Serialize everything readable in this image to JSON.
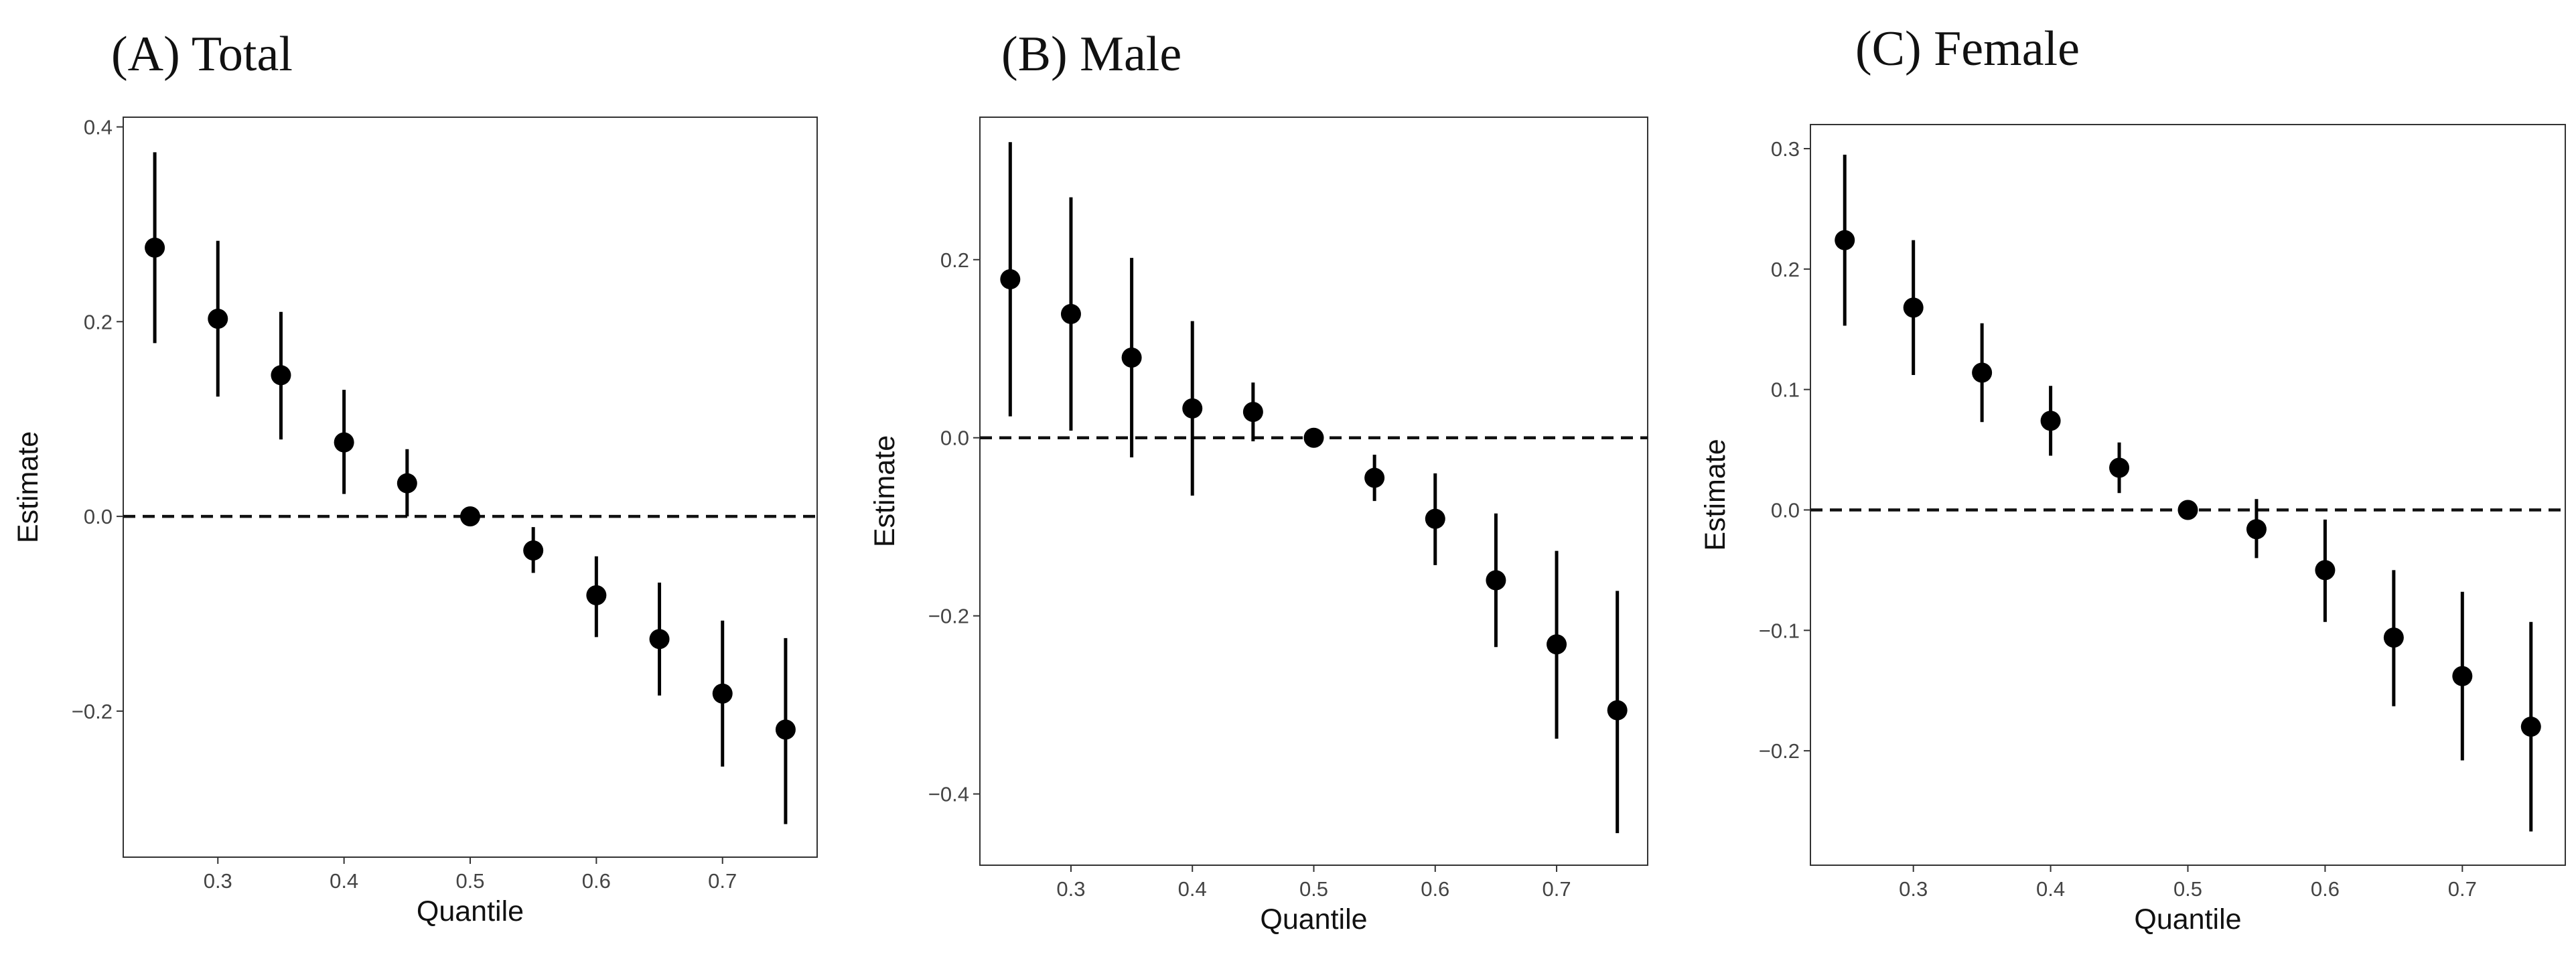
{
  "figure_name": "quantile-regression-estimates",
  "chart_data": [
    {
      "type": "scatter",
      "panel": "A",
      "title": "(A) Total",
      "xlabel": "Quantile",
      "ylabel": "Estimate",
      "xlim": [
        0.225,
        0.775
      ],
      "ylim": [
        -0.35,
        0.41
      ],
      "xticks": [
        0.3,
        0.4,
        0.5,
        0.6,
        0.7
      ],
      "xtick_labels": [
        "0.3",
        "0.4",
        "0.5",
        "0.6",
        "0.7"
      ],
      "yticks": [
        -0.2,
        0.0,
        0.2,
        0.4
      ],
      "ytick_labels": [
        "−0.2",
        "0.0",
        "0.2",
        "0.4"
      ],
      "reference_line": 0,
      "grid": false,
      "series": [
        {
          "name": "Total",
          "x": [
            0.25,
            0.3,
            0.35,
            0.4,
            0.45,
            0.5,
            0.55,
            0.6,
            0.65,
            0.7,
            0.75
          ],
          "estimate": [
            0.276,
            0.203,
            0.145,
            0.076,
            0.034,
            0.0,
            -0.035,
            -0.081,
            -0.126,
            -0.182,
            -0.219
          ],
          "lower": [
            0.178,
            0.123,
            0.079,
            0.023,
            0.0,
            0.0,
            -0.058,
            -0.124,
            -0.184,
            -0.257,
            -0.316
          ],
          "upper": [
            0.374,
            0.283,
            0.21,
            0.13,
            0.069,
            0.0,
            -0.011,
            -0.041,
            -0.068,
            -0.107,
            -0.125
          ]
        }
      ]
    },
    {
      "type": "scatter",
      "panel": "B",
      "title": "(B) Male",
      "xlabel": "Quantile",
      "ylabel": "Estimate",
      "xlim": [
        0.225,
        0.775
      ],
      "ylim": [
        -0.48,
        0.36
      ],
      "xticks": [
        0.3,
        0.4,
        0.5,
        0.6,
        0.7
      ],
      "xtick_labels": [
        "0.3",
        "0.4",
        "0.5",
        "0.6",
        "0.7"
      ],
      "yticks": [
        -0.4,
        -0.2,
        0.0,
        0.2
      ],
      "ytick_labels": [
        "−0.4",
        "−0.2",
        "0.0",
        "0.2"
      ],
      "reference_line": 0,
      "grid": false,
      "series": [
        {
          "name": "Male",
          "x": [
            0.25,
            0.3,
            0.35,
            0.4,
            0.45,
            0.5,
            0.55,
            0.6,
            0.65,
            0.7,
            0.75
          ],
          "estimate": [
            0.178,
            0.139,
            0.09,
            0.033,
            0.029,
            0.0,
            -0.045,
            -0.091,
            -0.16,
            -0.232,
            -0.306
          ],
          "lower": [
            0.024,
            0.008,
            -0.022,
            -0.065,
            -0.004,
            0.0,
            -0.071,
            -0.143,
            -0.235,
            -0.338,
            -0.444
          ],
          "upper": [
            0.332,
            0.27,
            0.202,
            0.131,
            0.062,
            0.0,
            -0.019,
            -0.04,
            -0.085,
            -0.127,
            -0.172
          ]
        }
      ]
    },
    {
      "type": "scatter",
      "panel": "C",
      "title": "(C) Female",
      "xlabel": "Quantile",
      "ylabel": "Estimate",
      "xlim": [
        0.225,
        0.775
      ],
      "ylim": [
        -0.295,
        0.32
      ],
      "xticks": [
        0.3,
        0.4,
        0.5,
        0.6,
        0.7
      ],
      "xtick_labels": [
        "0.3",
        "0.4",
        "0.5",
        "0.6",
        "0.7"
      ],
      "yticks": [
        -0.2,
        -0.1,
        0.0,
        0.1,
        0.2,
        0.3
      ],
      "ytick_labels": [
        "−0.2",
        "−0.1",
        "0.0",
        "0.1",
        "0.2",
        "0.3"
      ],
      "reference_line": 0,
      "grid": false,
      "series": [
        {
          "name": "Female",
          "x": [
            0.25,
            0.3,
            0.35,
            0.4,
            0.45,
            0.5,
            0.55,
            0.6,
            0.65,
            0.7,
            0.75
          ],
          "estimate": [
            0.224,
            0.168,
            0.114,
            0.074,
            0.035,
            0.0,
            -0.016,
            -0.05,
            -0.106,
            -0.138,
            -0.18
          ],
          "lower": [
            0.153,
            0.112,
            0.073,
            0.045,
            0.014,
            0.0,
            -0.04,
            -0.093,
            -0.163,
            -0.208,
            -0.267
          ],
          "upper": [
            0.295,
            0.224,
            0.155,
            0.103,
            0.056,
            0.0,
            0.009,
            -0.008,
            -0.05,
            -0.068,
            -0.093
          ]
        }
      ]
    }
  ]
}
